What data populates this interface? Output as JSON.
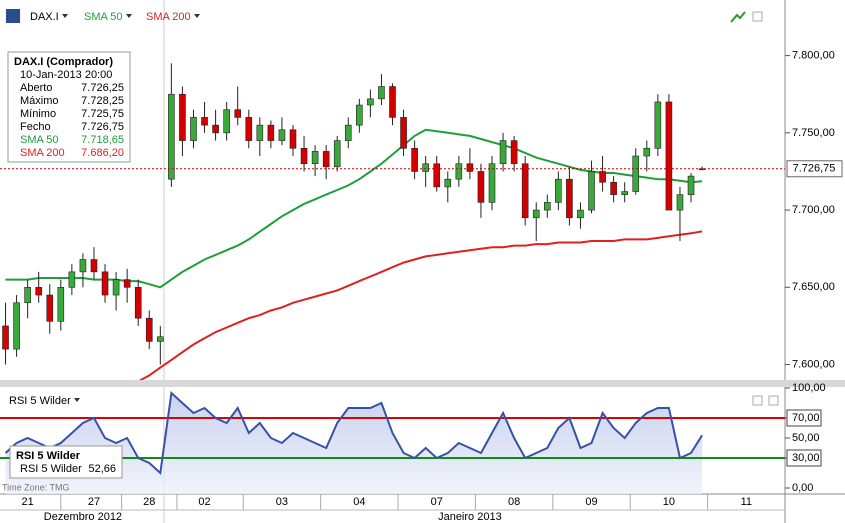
{
  "toolbar": {
    "symbol": "DAX.I"
  },
  "info_box": {
    "title": "DAX.I (Comprador)",
    "datetime": "10-Jan-2013 20:00",
    "rows": [
      {
        "label": "Aberto",
        "value": "7.726,25"
      },
      {
        "label": "Máximo",
        "value": "7.728,25"
      },
      {
        "label": "Mínimo",
        "value": "7.725,75"
      },
      {
        "label": "Fecho",
        "value": "7.726,75"
      },
      {
        "label": "SMA 50",
        "value": "7.718,65"
      },
      {
        "label": "SMA 200",
        "value": "7.686,20"
      }
    ]
  },
  "rsi_box": {
    "title": "RSI 5 Wilder",
    "value": "52,66"
  },
  "time_zone": "Time Zone: TMG",
  "chart_data": [
    {
      "type": "candlestick",
      "up_color": "#3aa83a",
      "down_color": "#d40000",
      "open": [
        7625,
        7610,
        7640,
        7650,
        7645,
        7628,
        7650,
        7660,
        7668,
        7660,
        7645,
        7655,
        7650,
        7630,
        7615,
        7720,
        7775,
        7745,
        7760,
        7755,
        7750,
        7765,
        7760,
        7745,
        7755,
        7745,
        7752,
        7740,
        7730,
        7738,
        7728,
        7745,
        7755,
        7768,
        7772,
        7780,
        7760,
        7740,
        7725,
        7730,
        7715,
        7720,
        7730,
        7725,
        7705,
        7730,
        7745,
        7730,
        7695,
        7700,
        7705,
        7720,
        7695,
        7700,
        7725,
        7718,
        7710,
        7712,
        7735,
        7740,
        7770,
        7700,
        7710,
        7726.25
      ],
      "high": [
        7640,
        7645,
        7655,
        7660,
        7652,
        7655,
        7665,
        7672,
        7676,
        7665,
        7660,
        7662,
        7655,
        7635,
        7625,
        7795,
        7780,
        7765,
        7770,
        7765,
        7770,
        7780,
        7765,
        7760,
        7758,
        7760,
        7755,
        7748,
        7742,
        7742,
        7748,
        7760,
        7772,
        7778,
        7788,
        7782,
        7765,
        7745,
        7735,
        7735,
        7725,
        7735,
        7740,
        7730,
        7735,
        7750,
        7748,
        7735,
        7705,
        7710,
        7725,
        7728,
        7705,
        7732,
        7735,
        7722,
        7718,
        7740,
        7745,
        7775,
        7775,
        7715,
        7724,
        7728.25
      ],
      "low": [
        7600,
        7605,
        7630,
        7640,
        7620,
        7622,
        7645,
        7650,
        7655,
        7640,
        7635,
        7640,
        7625,
        7610,
        7600,
        7715,
        7735,
        7740,
        7750,
        7745,
        7745,
        7755,
        7740,
        7735,
        7740,
        7742,
        7735,
        7725,
        7722,
        7720,
        7725,
        7740,
        7750,
        7760,
        7768,
        7755,
        7735,
        7720,
        7715,
        7712,
        7705,
        7715,
        7720,
        7695,
        7700,
        7725,
        7725,
        7690,
        7680,
        7695,
        7700,
        7690,
        7688,
        7698,
        7712,
        7705,
        7705,
        7710,
        7725,
        7735,
        7700,
        7680,
        7705,
        7725.75
      ],
      "close": [
        7610,
        7640,
        7650,
        7645,
        7628,
        7650,
        7660,
        7668,
        7660,
        7645,
        7655,
        7650,
        7630,
        7615,
        7618,
        7775,
        7745,
        7760,
        7755,
        7750,
        7765,
        7760,
        7745,
        7755,
        7745,
        7752,
        7740,
        7730,
        7738,
        7728,
        7745,
        7755,
        7768,
        7772,
        7780,
        7760,
        7740,
        7725,
        7730,
        7715,
        7720,
        7730,
        7725,
        7705,
        7730,
        7745,
        7730,
        7695,
        7700,
        7705,
        7720,
        7695,
        7700,
        7725,
        7718,
        7710,
        7712,
        7735,
        7740,
        7770,
        7700,
        7710,
        7722,
        7726.75
      ],
      "series": [
        {
          "name": "SMA 50",
          "color": "#1e9e3c",
          "values": [
            7655,
            7655,
            7655,
            7656,
            7656,
            7656,
            7656,
            7656,
            7655,
            7655,
            7655,
            7654,
            7654,
            7652,
            7650,
            7655,
            7660,
            7664,
            7668,
            7671,
            7674,
            7677,
            7681,
            7686,
            7691,
            7696,
            7700,
            7704,
            7707,
            7710,
            7713,
            7716,
            7720,
            7725,
            7730,
            7736,
            7742,
            7748,
            7752,
            7751,
            7750,
            7749,
            7748,
            7746,
            7744,
            7742,
            7740,
            7737,
            7734,
            7732,
            7730,
            7728,
            7726,
            7725,
            7724,
            7724,
            7723,
            7722,
            7721,
            7720,
            7720,
            7719,
            7718,
            7718.65
          ]
        },
        {
          "name": "SMA 200",
          "color": "#e02020",
          "values": [
            null,
            null,
            null,
            null,
            null,
            null,
            null,
            null,
            null,
            null,
            null,
            null,
            7589,
            7593,
            7598,
            7603,
            7608,
            7613,
            7617,
            7621,
            7624,
            7627,
            7630,
            7632,
            7635,
            7637,
            7640,
            7642,
            7644,
            7646,
            7648,
            7651,
            7654,
            7657,
            7660,
            7663,
            7666,
            7668,
            7670,
            7671,
            7672,
            7673,
            7674,
            7675,
            7676,
            7676,
            7677,
            7677,
            7678,
            7678,
            7679,
            7679,
            7679,
            7680,
            7680,
            7680,
            7681,
            7681,
            7681,
            7682,
            7683,
            7684,
            7685,
            7686.2
          ]
        }
      ],
      "last_price": {
        "value": 7726.75,
        "label": "7.726,75"
      },
      "ylim": [
        7590,
        7836
      ],
      "yticks": [
        {
          "value": 7600,
          "label": "7.600,00"
        },
        {
          "value": 7650,
          "label": "7.650,00"
        },
        {
          "value": 7700,
          "label": "7.700,00"
        },
        {
          "value": 7750,
          "label": "7.750,00"
        },
        {
          "value": 7800,
          "label": "7.800,00"
        }
      ],
      "xlim": [
        0,
        71
      ],
      "xticks": [
        {
          "value": 2.5,
          "label": "21"
        },
        {
          "value": 8.5,
          "label": "27"
        },
        {
          "value": 13.5,
          "label": "28"
        },
        {
          "value": 18.5,
          "label": "02"
        },
        {
          "value": 25.5,
          "label": "03"
        },
        {
          "value": 32.5,
          "label": "04"
        },
        {
          "value": 39.5,
          "label": "07"
        },
        {
          "value": 46.5,
          "label": "08"
        },
        {
          "value": 53.5,
          "label": "09"
        },
        {
          "value": 60.5,
          "label": "10"
        },
        {
          "value": 67.5,
          "label": "11"
        }
      ],
      "month_ticks": [
        {
          "value": 7.5,
          "label": "Dezembro 2012"
        },
        {
          "value": 42.5,
          "label": "Janeiro 2013"
        }
      ]
    },
    {
      "type": "line",
      "title": "RSI 5 Wilder",
      "color": "#3652a8",
      "values": [
        35,
        45,
        50,
        45,
        40,
        45,
        55,
        65,
        70,
        50,
        45,
        50,
        30,
        25,
        15,
        95,
        85,
        75,
        80,
        70,
        65,
        80,
        55,
        65,
        50,
        45,
        55,
        50,
        45,
        40,
        65,
        80,
        80,
        80,
        85,
        55,
        35,
        30,
        40,
        30,
        35,
        45,
        40,
        35,
        55,
        75,
        50,
        30,
        35,
        40,
        60,
        70,
        40,
        45,
        75,
        60,
        50,
        65,
        75,
        80,
        80,
        30,
        35,
        52.66
      ],
      "levels": [
        {
          "value": 70,
          "color": "#e00000"
        },
        {
          "value": 30,
          "color": "#138a13"
        }
      ],
      "ylim": [
        -6,
        101
      ],
      "yticks": [
        {
          "value": 0,
          "label": "0,00"
        },
        {
          "value": 30,
          "label": "30,00"
        },
        {
          "value": 50,
          "label": "50,00"
        },
        {
          "value": 70,
          "label": "70,00"
        },
        {
          "value": 100,
          "label": "100,00"
        }
      ]
    }
  ]
}
